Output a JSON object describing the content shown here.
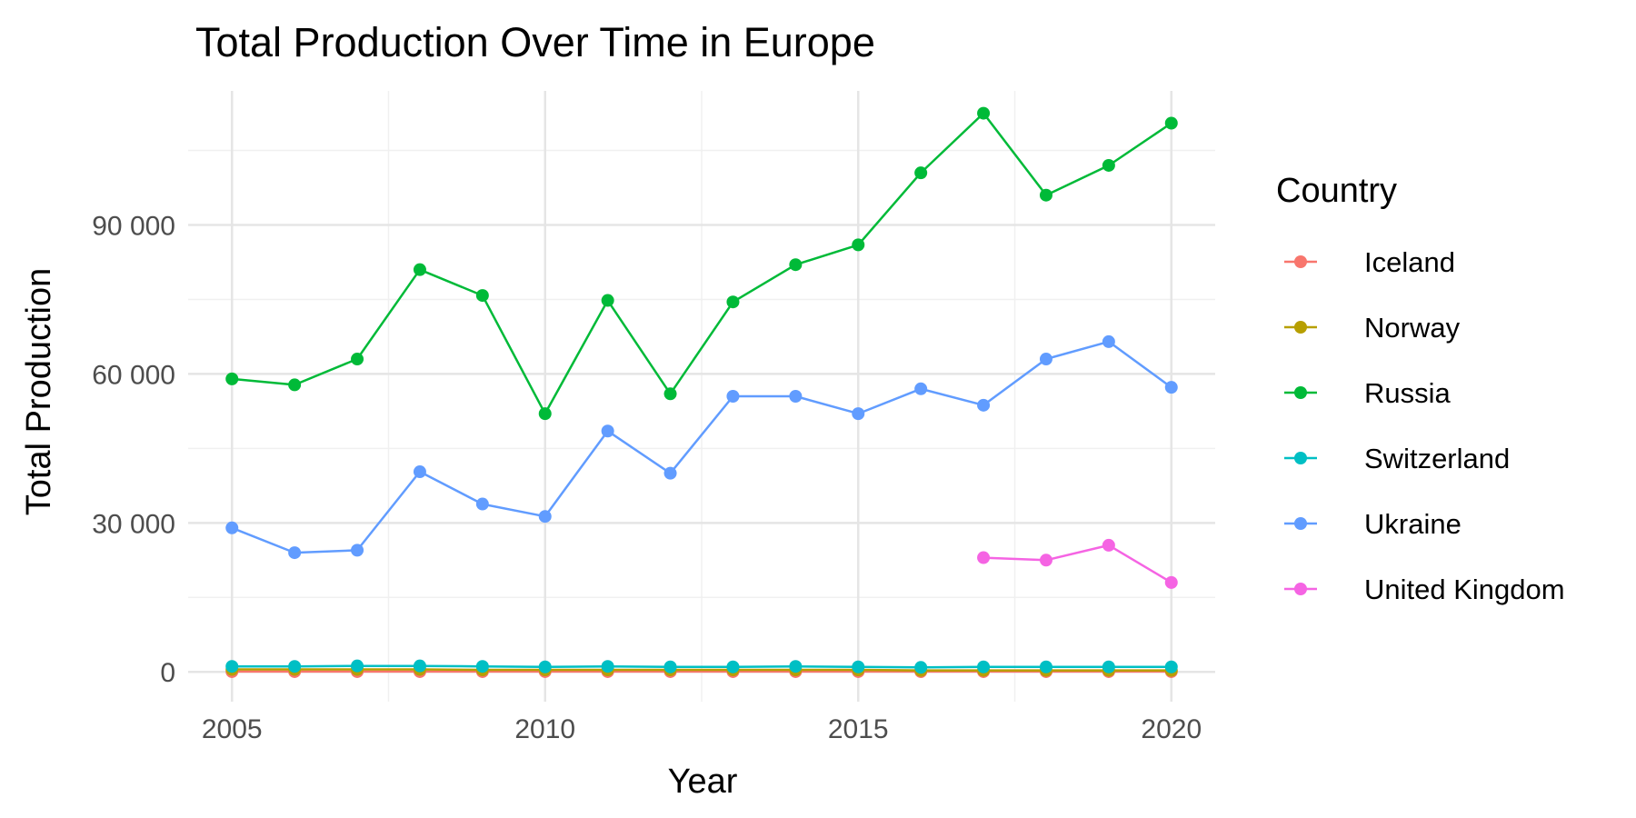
{
  "chart_data": {
    "type": "line",
    "title": "Total Production Over Time in Europe",
    "xlabel": "Year",
    "ylabel": "Total Production",
    "xlim": [
      2004.3,
      2020.7
    ],
    "ylim": [
      -6000,
      117000
    ],
    "x_ticks": [
      2005,
      2010,
      2015,
      2020
    ],
    "x_tick_labels": [
      "2005",
      "2010",
      "2015",
      "2020"
    ],
    "y_ticks": [
      0,
      30000,
      60000,
      90000
    ],
    "y_tick_labels": [
      "0",
      "30 000",
      "60 000",
      "90 000"
    ],
    "y_minor_ticks": [
      15000,
      45000,
      75000,
      105000
    ],
    "x_minor_ticks": [
      2007.5,
      2012.5,
      2017.5
    ],
    "grid": true,
    "legend": {
      "title": "Country",
      "placement": "right"
    },
    "series": [
      {
        "name": "Iceland",
        "color": "#F8766D",
        "x": [
          2005,
          2006,
          2007,
          2008,
          2009,
          2010,
          2011,
          2012,
          2013,
          2014,
          2015,
          2016,
          2017,
          2018,
          2019,
          2020
        ],
        "values": [
          50,
          50,
          50,
          50,
          50,
          50,
          50,
          50,
          50,
          50,
          50,
          50,
          50,
          50,
          50,
          50
        ]
      },
      {
        "name": "Norway",
        "color": "#B79F00",
        "x": [
          2005,
          2006,
          2007,
          2008,
          2009,
          2010,
          2011,
          2012,
          2013,
          2014,
          2015,
          2016,
          2017,
          2018,
          2019,
          2020
        ],
        "values": [
          500,
          500,
          500,
          500,
          400,
          400,
          400,
          400,
          400,
          400,
          400,
          300,
          300,
          300,
          300,
          300
        ]
      },
      {
        "name": "Russia",
        "color": "#00BA38",
        "x": [
          2005,
          2006,
          2007,
          2008,
          2009,
          2010,
          2011,
          2012,
          2013,
          2014,
          2015,
          2016,
          2017,
          2018,
          2019,
          2020
        ],
        "values": [
          59000,
          57800,
          63000,
          81000,
          75800,
          52000,
          74800,
          56000,
          74500,
          82000,
          86000,
          100500,
          112500,
          96000,
          102000,
          110500
        ]
      },
      {
        "name": "Switzerland",
        "color": "#00BFC4",
        "x": [
          2005,
          2006,
          2007,
          2008,
          2009,
          2010,
          2011,
          2012,
          2013,
          2014,
          2015,
          2016,
          2017,
          2018,
          2019,
          2020
        ],
        "values": [
          1100,
          1100,
          1200,
          1200,
          1100,
          1000,
          1100,
          1000,
          1000,
          1100,
          1000,
          900,
          1000,
          1000,
          1000,
          1000
        ]
      },
      {
        "name": "Ukraine",
        "color": "#619CFF",
        "x": [
          2005,
          2006,
          2007,
          2008,
          2009,
          2010,
          2011,
          2012,
          2013,
          2014,
          2015,
          2016,
          2017,
          2018,
          2019,
          2020
        ],
        "values": [
          29000,
          24000,
          24500,
          40300,
          33800,
          31300,
          48500,
          40000,
          55500,
          55500,
          52000,
          57000,
          53700,
          63000,
          66500,
          57300
        ]
      },
      {
        "name": "United Kingdom",
        "color": "#F564E3",
        "x": [
          2017,
          2018,
          2019,
          2020
        ],
        "values": [
          23000,
          22500,
          25500,
          18000
        ]
      }
    ]
  }
}
